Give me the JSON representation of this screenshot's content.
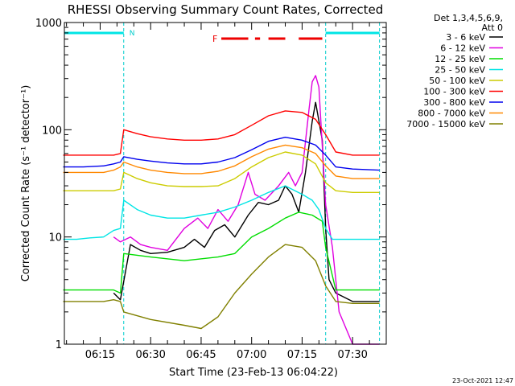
{
  "chart_data": {
    "type": "line",
    "title": "RHESSI Observing Summary Count Rates, Corrected",
    "xlabel": "Start Time (23-Feb-13 06:04:22)",
    "ylabel": "Corrected Count Rate (s⁻¹ detector⁻¹)",
    "x_ticks": [
      "06:15",
      "06:30",
      "06:45",
      "07:00",
      "07:15",
      "07:30"
    ],
    "x_range": [
      "06:04:22",
      "07:40:00"
    ],
    "y_scale": "log",
    "y_range": [
      1,
      1000
    ],
    "y_tick_labels": [
      "1",
      "10",
      "100",
      "1000"
    ],
    "legend_position": "top-right, outside plot",
    "legend_header": [
      "Det 1,3,4,5,6,9,",
      "Att 0"
    ],
    "timestamp": "23-Oct-2021 12:47",
    "markers": {
      "night_label": "N",
      "flare_label": "F",
      "night_intervals": [
        [
          "06:04:22",
          "06:22:00"
        ],
        [
          "07:22:00",
          "07:38:00"
        ]
      ],
      "flare_intervals": [
        [
          "06:51:00",
          "06:59:00"
        ],
        [
          "07:01:00",
          "07:02:30"
        ],
        [
          "07:05:00",
          "07:10:00"
        ],
        [
          "07:14:00",
          "07:21:00"
        ]
      ],
      "saa_lines": [
        "06:22:00",
        "07:22:00",
        "07:38:00"
      ]
    },
    "series": [
      {
        "name": "3 - 6 keV",
        "color": "#000000",
        "points": [
          [
            "06:19",
            3.0
          ],
          [
            "06:21",
            2.6
          ],
          [
            "06:24",
            8.5
          ],
          [
            "06:27",
            7.5
          ],
          [
            "06:30",
            7.0
          ],
          [
            "06:35",
            7.2
          ],
          [
            "06:40",
            8.0
          ],
          [
            "06:43",
            9.5
          ],
          [
            "06:46",
            8.0
          ],
          [
            "06:49",
            11.5
          ],
          [
            "06:52",
            13.0
          ],
          [
            "06:55",
            10.0
          ],
          [
            "06:59",
            16.0
          ],
          [
            "07:02",
            21.0
          ],
          [
            "07:05",
            20.0
          ],
          [
            "07:08",
            22.0
          ],
          [
            "07:10",
            30.0
          ],
          [
            "07:12",
            25.0
          ],
          [
            "07:14",
            17.0
          ],
          [
            "07:16",
            40.0
          ],
          [
            "07:18",
            120.0
          ],
          [
            "07:19",
            180.0
          ],
          [
            "07:21",
            80.0
          ],
          [
            "07:22",
            12.0
          ],
          [
            "07:23",
            4.0
          ],
          [
            "07:25",
            3.0
          ],
          [
            "07:30",
            2.5
          ],
          [
            "07:35",
            2.5
          ],
          [
            "07:38",
            2.5
          ]
        ]
      },
      {
        "name": "6 - 12 keV",
        "color": "#e000e0",
        "points": [
          [
            "06:19",
            10.0
          ],
          [
            "06:21",
            9.0
          ],
          [
            "06:24",
            10.0
          ],
          [
            "06:27",
            8.5
          ],
          [
            "06:30",
            8.0
          ],
          [
            "06:35",
            7.5
          ],
          [
            "06:40",
            12.0
          ],
          [
            "06:44",
            15.0
          ],
          [
            "06:47",
            12.0
          ],
          [
            "06:50",
            18.0
          ],
          [
            "06:53",
            14.0
          ],
          [
            "06:56",
            20.0
          ],
          [
            "06:59",
            40.0
          ],
          [
            "07:01",
            25.0
          ],
          [
            "07:04",
            22.0
          ],
          [
            "07:08",
            30.0
          ],
          [
            "07:11",
            40.0
          ],
          [
            "07:13",
            30.0
          ],
          [
            "07:15",
            40.0
          ],
          [
            "07:17",
            150.0
          ],
          [
            "07:18",
            280.0
          ],
          [
            "07:19",
            320.0
          ],
          [
            "07:20",
            250.0
          ],
          [
            "07:22",
            20.0
          ],
          [
            "07:24",
            8.0
          ],
          [
            "07:26",
            2.0
          ],
          [
            "07:30",
            1.0
          ],
          [
            "07:38",
            1.0
          ]
        ]
      },
      {
        "name": "12 - 25 keV",
        "color": "#00dd00",
        "points": [
          [
            "06:04",
            3.2
          ],
          [
            "06:10",
            3.2
          ],
          [
            "06:15",
            3.2
          ],
          [
            "06:19",
            3.2
          ],
          [
            "06:21",
            3.0
          ],
          [
            "06:22",
            7.0
          ],
          [
            "06:30",
            6.5
          ],
          [
            "06:40",
            6.0
          ],
          [
            "06:50",
            6.5
          ],
          [
            "06:55",
            7.0
          ],
          [
            "07:00",
            10.0
          ],
          [
            "07:05",
            12.0
          ],
          [
            "07:10",
            15.0
          ],
          [
            "07:14",
            17.0
          ],
          [
            "07:18",
            16.0
          ],
          [
            "07:21",
            14.0
          ],
          [
            "07:22",
            8.0
          ],
          [
            "07:25",
            3.2
          ],
          [
            "07:30",
            3.2
          ],
          [
            "07:38",
            3.2
          ]
        ]
      },
      {
        "name": "25 - 50 keV",
        "color": "#00e5e5",
        "points": [
          [
            "06:04",
            9.5
          ],
          [
            "06:08",
            9.5
          ],
          [
            "06:12",
            9.8
          ],
          [
            "06:16",
            10.0
          ],
          [
            "06:19",
            11.5
          ],
          [
            "06:21",
            12.0
          ],
          [
            "06:22",
            22.0
          ],
          [
            "06:26",
            18.0
          ],
          [
            "06:30",
            16.0
          ],
          [
            "06:35",
            15.0
          ],
          [
            "06:40",
            15.0
          ],
          [
            "06:45",
            16.0
          ],
          [
            "06:50",
            17.0
          ],
          [
            "06:55",
            19.0
          ],
          [
            "07:00",
            22.0
          ],
          [
            "07:05",
            26.0
          ],
          [
            "07:10",
            30.0
          ],
          [
            "07:15",
            25.0
          ],
          [
            "07:18",
            22.0
          ],
          [
            "07:20",
            18.0
          ],
          [
            "07:22",
            12.0
          ],
          [
            "07:24",
            9.5
          ],
          [
            "07:30",
            9.5
          ],
          [
            "07:38",
            9.5
          ]
        ]
      },
      {
        "name": "50 - 100 keV",
        "color": "#cccc00",
        "points": [
          [
            "06:04",
            27.0
          ],
          [
            "06:10",
            27.0
          ],
          [
            "06:16",
            27.0
          ],
          [
            "06:19",
            27.0
          ],
          [
            "06:21",
            28.0
          ],
          [
            "06:22",
            40.0
          ],
          [
            "06:26",
            35.0
          ],
          [
            "06:30",
            32.0
          ],
          [
            "06:35",
            30.0
          ],
          [
            "06:40",
            29.5
          ],
          [
            "06:45",
            29.5
          ],
          [
            "06:50",
            30.0
          ],
          [
            "06:55",
            35.0
          ],
          [
            "07:00",
            45.0
          ],
          [
            "07:05",
            55.0
          ],
          [
            "07:10",
            62.0
          ],
          [
            "07:15",
            58.0
          ],
          [
            "07:19",
            48.0
          ],
          [
            "07:22",
            32.0
          ],
          [
            "07:25",
            27.0
          ],
          [
            "07:30",
            26.0
          ],
          [
            "07:38",
            26.0
          ]
        ]
      },
      {
        "name": "100 - 300 keV",
        "color": "#ff0000",
        "points": [
          [
            "06:04",
            58.0
          ],
          [
            "06:10",
            58.0
          ],
          [
            "06:16",
            58.0
          ],
          [
            "06:19",
            58.0
          ],
          [
            "06:21",
            60.0
          ],
          [
            "06:22",
            100.0
          ],
          [
            "06:26",
            92.0
          ],
          [
            "06:30",
            86.0
          ],
          [
            "06:35",
            82.0
          ],
          [
            "06:40",
            80.0
          ],
          [
            "06:45",
            80.0
          ],
          [
            "06:50",
            82.0
          ],
          [
            "06:55",
            90.0
          ],
          [
            "07:00",
            110.0
          ],
          [
            "07:05",
            135.0
          ],
          [
            "07:10",
            150.0
          ],
          [
            "07:15",
            145.0
          ],
          [
            "07:19",
            125.0
          ],
          [
            "07:22",
            90.0
          ],
          [
            "07:25",
            62.0
          ],
          [
            "07:30",
            58.0
          ],
          [
            "07:38",
            58.0
          ]
        ]
      },
      {
        "name": "300 - 800 keV",
        "color": "#0000ee",
        "points": [
          [
            "06:04",
            45.0
          ],
          [
            "06:10",
            45.0
          ],
          [
            "06:16",
            46.0
          ],
          [
            "06:19",
            48.0
          ],
          [
            "06:21",
            50.0
          ],
          [
            "06:22",
            56.0
          ],
          [
            "06:26",
            53.0
          ],
          [
            "06:30",
            51.0
          ],
          [
            "06:35",
            49.0
          ],
          [
            "06:40",
            48.0
          ],
          [
            "06:45",
            48.0
          ],
          [
            "06:50",
            50.0
          ],
          [
            "06:55",
            55.0
          ],
          [
            "07:00",
            65.0
          ],
          [
            "07:05",
            78.0
          ],
          [
            "07:10",
            85.0
          ],
          [
            "07:15",
            80.0
          ],
          [
            "07:19",
            72.0
          ],
          [
            "07:22",
            58.0
          ],
          [
            "07:25",
            45.0
          ],
          [
            "07:30",
            43.0
          ],
          [
            "07:38",
            42.0
          ]
        ]
      },
      {
        "name": "800 - 7000 keV",
        "color": "#ff8800",
        "points": [
          [
            "06:04",
            40.0
          ],
          [
            "06:10",
            40.0
          ],
          [
            "06:16",
            40.0
          ],
          [
            "06:19",
            42.0
          ],
          [
            "06:21",
            45.0
          ],
          [
            "06:22",
            50.0
          ],
          [
            "06:26",
            45.0
          ],
          [
            "06:30",
            42.0
          ],
          [
            "06:35",
            40.0
          ],
          [
            "06:40",
            39.0
          ],
          [
            "06:45",
            39.0
          ],
          [
            "06:50",
            41.0
          ],
          [
            "06:55",
            46.0
          ],
          [
            "07:00",
            56.0
          ],
          [
            "07:05",
            66.0
          ],
          [
            "07:10",
            72.0
          ],
          [
            "07:15",
            68.0
          ],
          [
            "07:19",
            60.0
          ],
          [
            "07:22",
            46.0
          ],
          [
            "07:25",
            37.0
          ],
          [
            "07:30",
            35.0
          ],
          [
            "07:38",
            35.0
          ]
        ]
      },
      {
        "name": "7000 - 15000 keV",
        "color": "#808000",
        "points": [
          [
            "06:04",
            2.5
          ],
          [
            "06:10",
            2.5
          ],
          [
            "06:16",
            2.5
          ],
          [
            "06:19",
            2.6
          ],
          [
            "06:21",
            2.5
          ],
          [
            "06:22",
            2.0
          ],
          [
            "06:30",
            1.7
          ],
          [
            "06:40",
            1.5
          ],
          [
            "06:45",
            1.4
          ],
          [
            "06:50",
            1.8
          ],
          [
            "06:55",
            3.0
          ],
          [
            "07:00",
            4.5
          ],
          [
            "07:05",
            6.5
          ],
          [
            "07:10",
            8.5
          ],
          [
            "07:15",
            8.0
          ],
          [
            "07:19",
            6.0
          ],
          [
            "07:22",
            3.5
          ],
          [
            "07:25",
            2.5
          ],
          [
            "07:30",
            2.4
          ],
          [
            "07:38",
            2.4
          ]
        ]
      }
    ]
  }
}
